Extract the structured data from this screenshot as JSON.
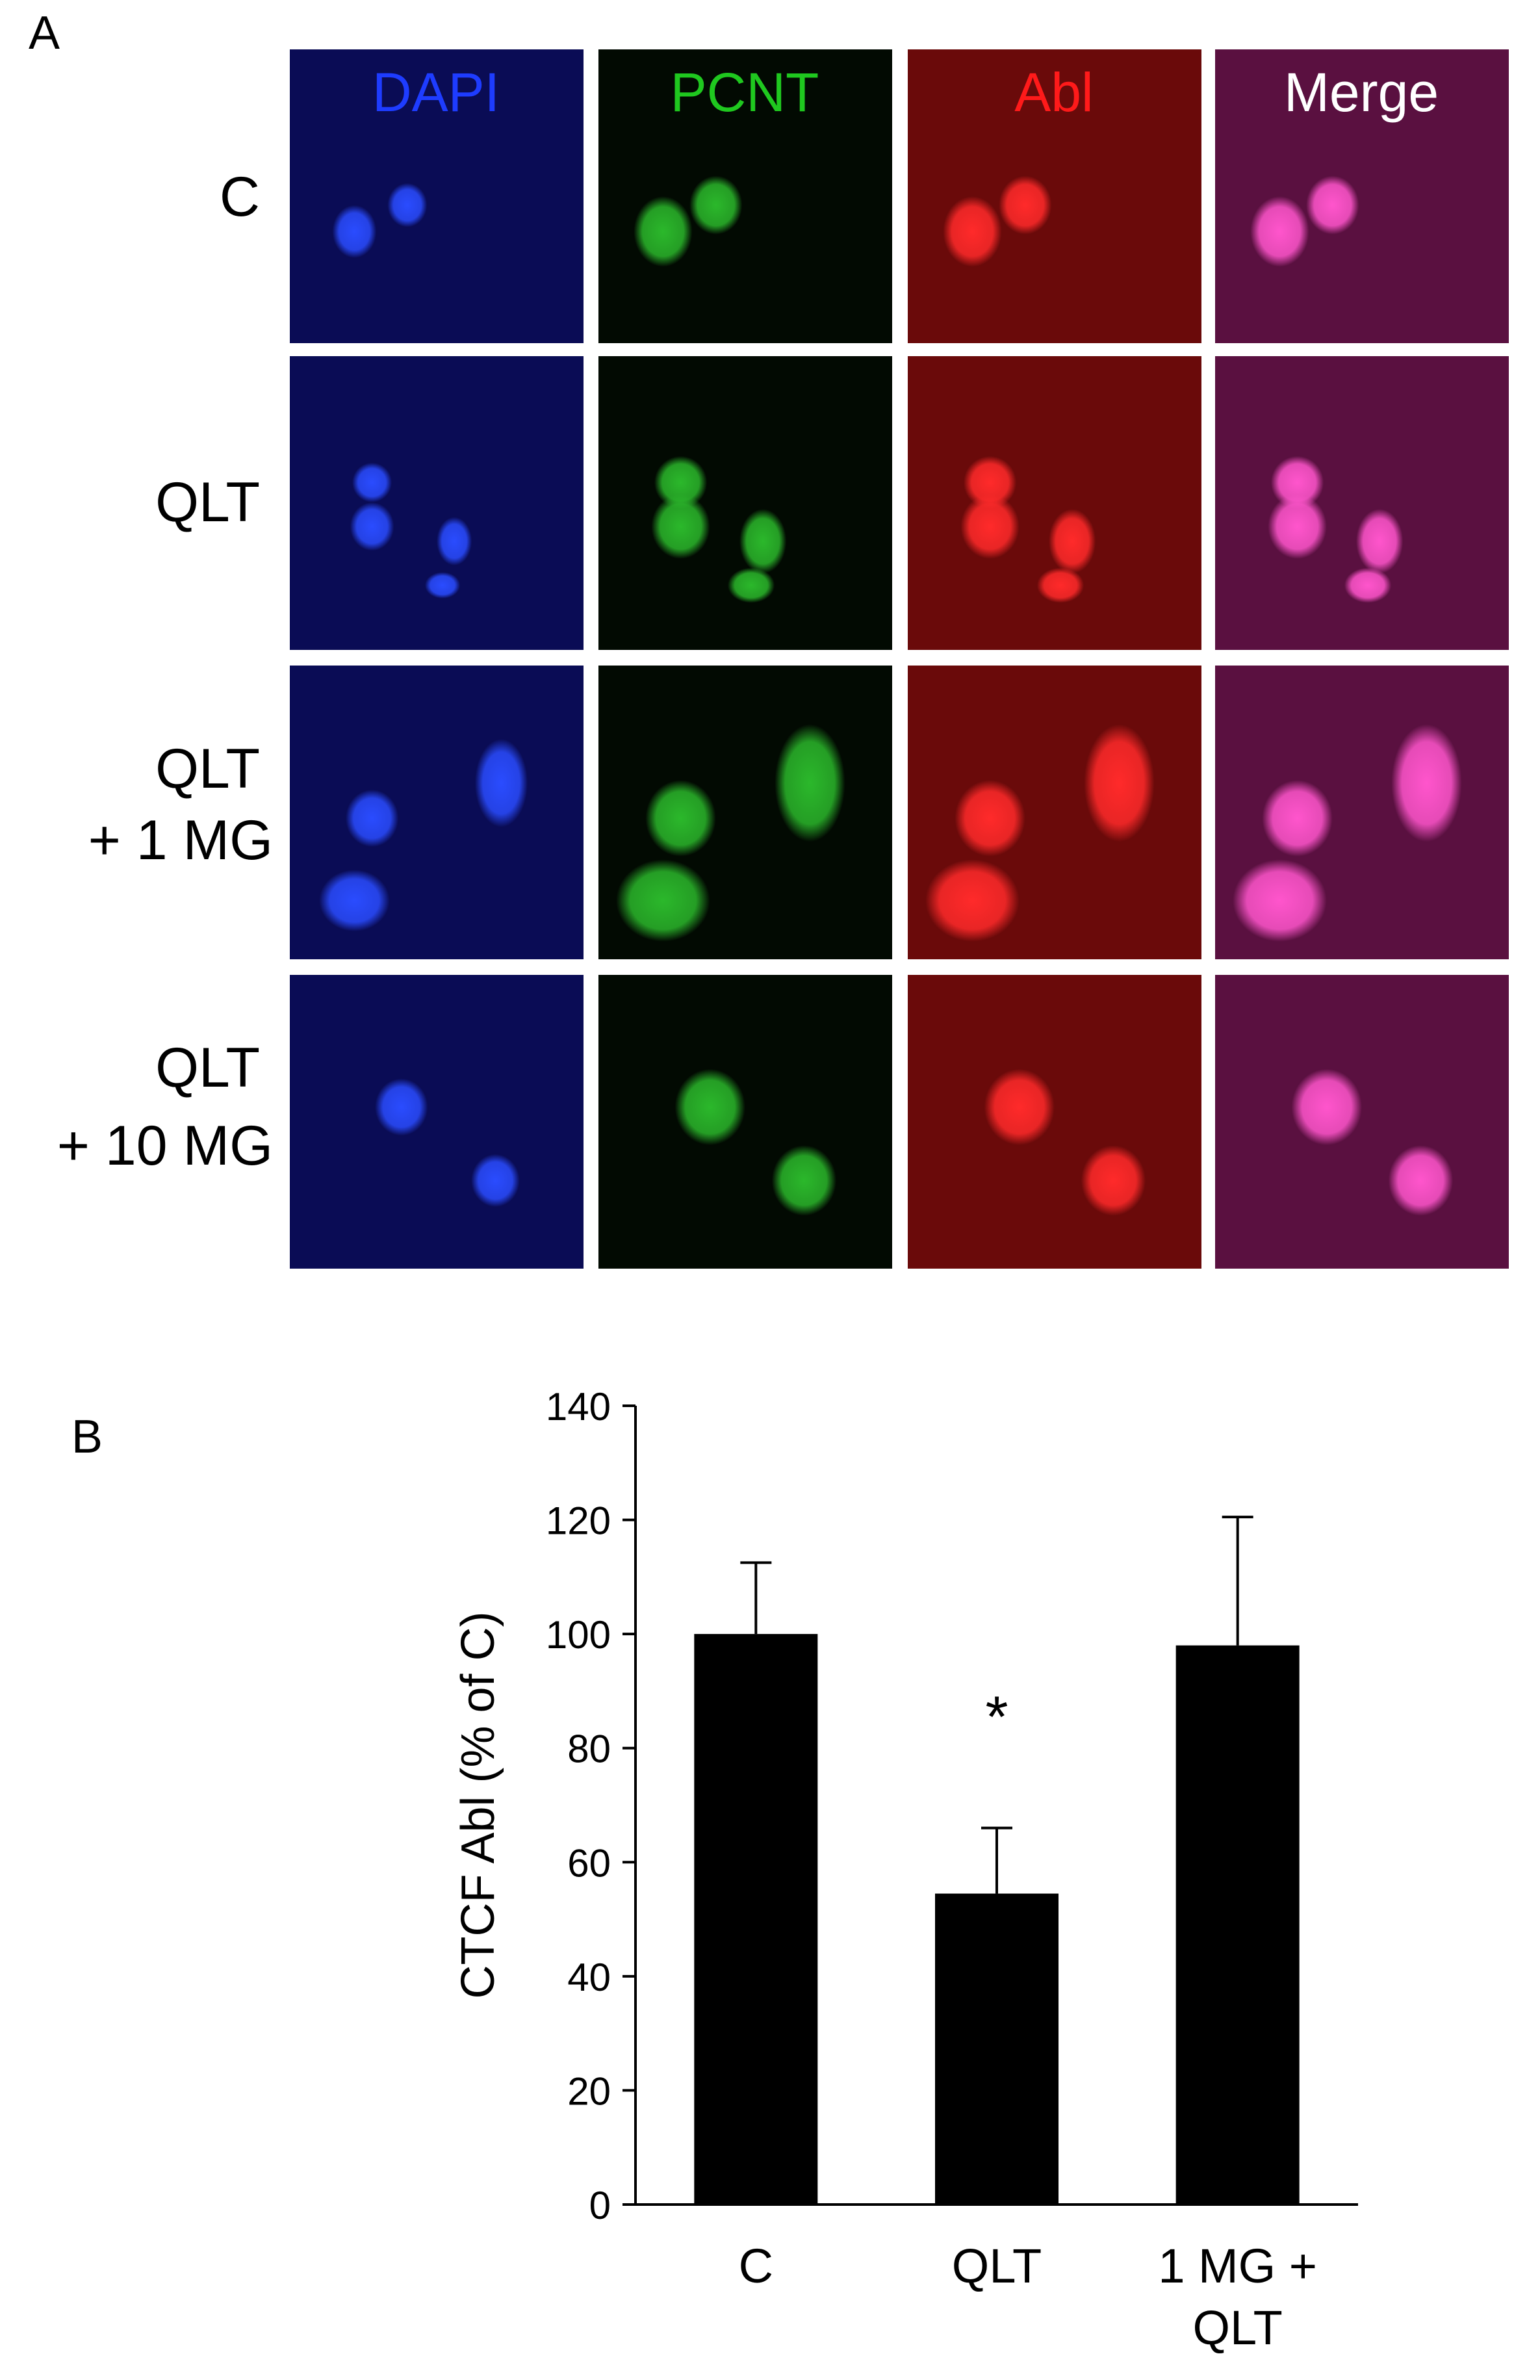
{
  "panel_a": {
    "letter": "A",
    "columns": [
      {
        "label": "DAPI",
        "color": "#1e3cff"
      },
      {
        "label": "PCNT",
        "color": "#1fc81f"
      },
      {
        "label": "Abl",
        "color": "#ff1a1a"
      },
      {
        "label": "Merge",
        "color": "#ffffff"
      }
    ],
    "rows": [
      {
        "line1": "C",
        "line2": ""
      },
      {
        "line1": "QLT",
        "line2": ""
      },
      {
        "line1": "QLT",
        "line2": "+ 1 MG"
      },
      {
        "line1": "QLT",
        "line2": "+ 10 MG"
      }
    ],
    "tile_backgrounds": {
      "dapi": "#0a0c55",
      "pcnt": "#020a02",
      "abl": "#6a0a0a",
      "merge": "#5a1040"
    }
  },
  "panel_b": {
    "letter": "B"
  },
  "chart_data": {
    "type": "bar",
    "categories": [
      "C",
      "QLT",
      "1 MG + QLT"
    ],
    "category_lines": [
      [
        "C"
      ],
      [
        "QLT"
      ],
      [
        "1 MG +",
        "QLT"
      ]
    ],
    "values": [
      100,
      54.5,
      98
    ],
    "error_upper": [
      112.5,
      66,
      120.5
    ],
    "annotations": [
      {
        "category": "QLT",
        "text": "*"
      }
    ],
    "ylabel": "CTCF Abl (% of C)",
    "xlabel": "",
    "ylim": [
      0,
      140
    ],
    "yticks": [
      0,
      20,
      40,
      60,
      80,
      100,
      120,
      140
    ],
    "bar_color": "#000000",
    "grid": false
  }
}
